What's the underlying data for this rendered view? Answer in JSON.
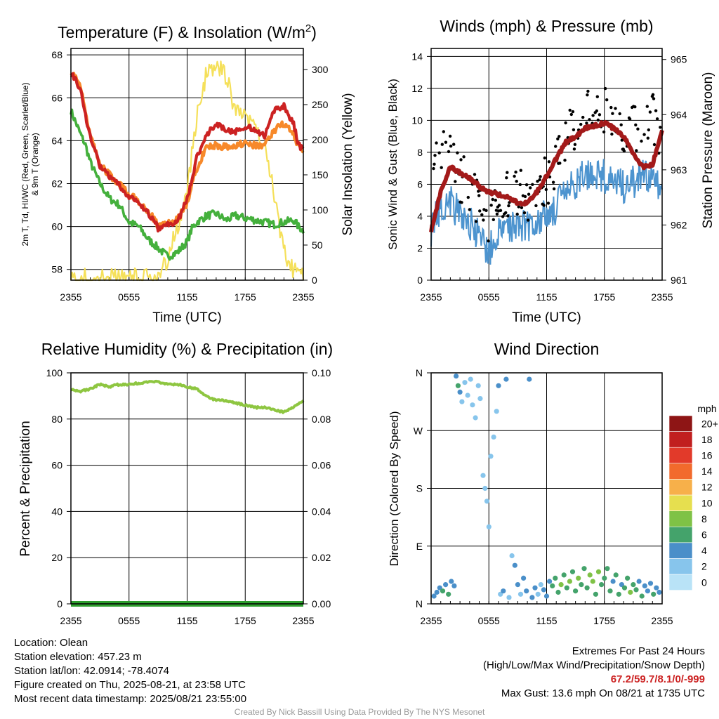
{
  "info": {
    "location": "Location: Olean",
    "elevation": "Station elevation: 457.23 m",
    "latlon": "Station lat/lon: 42.0914; -78.4074",
    "created": "Figure created on Thu, 2025-08-21, at 23:58 UTC",
    "recent": "Most recent data timestamp: 2025/08/21 23:55:00"
  },
  "extremes": {
    "title": "Extremes For Past 24 Hours",
    "subtitle": "(High/Low/Max Wind/Precipitation/Snow Depth)",
    "values": "67.2/59.7/8.1/0/-999",
    "gust": "Max Gust: 13.6 mph On 08/21 at 1735 UTC"
  },
  "credit": "Created By Nick Bassill Using Data Provided By The NYS Mesonet",
  "colors": {
    "red": "#cc2222",
    "orange": "#f7892a",
    "green": "#44b03c",
    "yellow": "#f5e05a",
    "blue": "#4d94cf",
    "maroon": "#a31a1a",
    "rh": "#8ec641",
    "precip": "#2e9e2e"
  },
  "chart_data": [
    {
      "type": "line",
      "title": "Temperature (F) & Insolation (W/m2)",
      "title_main": "Temperature (F) & Insolation (W/m",
      "title_sup": "2",
      "title_end": ")",
      "xlabel": "Time (UTC)",
      "ylabel_lines": [
        "2m T, Td, HI/WC (Red, Green, Scarlet/Blue)",
        "& 9m T (Orange)"
      ],
      "y2label": "Solar Insolation (Yellow)",
      "x_ticks": [
        "2355",
        "0555",
        "1155",
        "1755",
        "2355"
      ],
      "ylim": [
        57.5,
        68.3
      ],
      "y_ticks": [
        58,
        60,
        62,
        64,
        66,
        68
      ],
      "y2lim": [
        0,
        330
      ],
      "y2_ticks": [
        0,
        50,
        100,
        150,
        200,
        250,
        300
      ],
      "x_hours": [
        0,
        1,
        1.5,
        2,
        3,
        4,
        5,
        6,
        7,
        8,
        8.5,
        9,
        10,
        11,
        12,
        12.5,
        13,
        14,
        15,
        16,
        17,
        18,
        19,
        20,
        21,
        22,
        23,
        23.5,
        24
      ],
      "series": [
        {
          "name": "2m T",
          "color": "red",
          "axis": "left",
          "values": [
            67.2,
            66.4,
            65.2,
            64.2,
            62.8,
            62.3,
            61.9,
            61.4,
            61.1,
            60.6,
            60.3,
            59.9,
            60.1,
            60.2,
            61.3,
            62.2,
            63.2,
            64.3,
            64.8,
            64.5,
            64.4,
            64.7,
            64.5,
            64.2,
            65.4,
            65.6,
            64.8,
            63.8,
            63.6
          ]
        },
        {
          "name": "9m T",
          "color": "orange",
          "axis": "left",
          "values": [
            67.3,
            66.6,
            65.4,
            64.3,
            62.9,
            62.4,
            62.0,
            61.5,
            61.2,
            60.7,
            60.4,
            60.0,
            60.2,
            60.3,
            61.1,
            62.0,
            62.7,
            63.7,
            63.8,
            63.7,
            63.8,
            63.9,
            63.8,
            63.8,
            64.5,
            64.8,
            64.3,
            63.7,
            63.6
          ]
        },
        {
          "name": "Td",
          "color": "green",
          "axis": "left",
          "values": [
            65.4,
            64.3,
            63.8,
            63.0,
            62.0,
            61.3,
            61.0,
            60.2,
            60.0,
            59.4,
            59.2,
            59.0,
            58.6,
            58.8,
            59.3,
            59.9,
            60.2,
            60.5,
            60.6,
            60.3,
            60.5,
            60.4,
            60.3,
            60.2,
            60.1,
            60.2,
            60.3,
            60.0,
            59.8
          ]
        },
        {
          "name": "Solar",
          "color": "yellow",
          "axis": "right",
          "values": [
            3,
            3,
            3,
            3,
            3,
            3,
            3,
            3,
            3,
            3,
            3,
            3,
            30,
            75,
            130,
            180,
            230,
            295,
            310,
            290,
            240,
            230,
            215,
            190,
            120,
            40,
            15,
            8,
            3
          ]
        }
      ]
    },
    {
      "type": "line",
      "title": "Winds (mph) & Pressure (mb)",
      "xlabel": "Time (UTC)",
      "ylabel": "Sonic Wind & Gust (Blue, Black)",
      "y2label": "Station Pressure (Maroon)",
      "x_ticks": [
        "2355",
        "0555",
        "1155",
        "1755",
        "2355"
      ],
      "ylim": [
        0,
        14.5
      ],
      "y_ticks": [
        0,
        2,
        4,
        6,
        8,
        10,
        12,
        14
      ],
      "y2lim": [
        961,
        965.2
      ],
      "y2_ticks": [
        961,
        962,
        963,
        964,
        965
      ],
      "x_hours": [
        0,
        1,
        2,
        3,
        4,
        5,
        6,
        7,
        8,
        9,
        10,
        11,
        12,
        13,
        14,
        15,
        16,
        17,
        18,
        19,
        20,
        21,
        22,
        23,
        24
      ],
      "series": [
        {
          "name": "Sonic Wind",
          "color": "blue",
          "axis": "left",
          "values": [
            3.2,
            4.6,
            5.0,
            4.0,
            3.6,
            2.6,
            1.8,
            2.8,
            3.4,
            3.6,
            3.4,
            3.8,
            4.0,
            4.6,
            5.4,
            6.0,
            6.6,
            6.8,
            6.5,
            6.0,
            5.9,
            6.1,
            6.5,
            6.6,
            5.4
          ]
        },
        {
          "name": "Gust",
          "color": "black",
          "axis": "left",
          "values": [
            8.2,
            8.0,
            7.8,
            6.5,
            5.6,
            4.6,
            3.0,
            4.8,
            5.4,
            5.4,
            5.2,
            5.9,
            6.2,
            7.4,
            8.8,
            9.6,
            10.6,
            11.5,
            10.8,
            9.8,
            8.9,
            9.4,
            9.8,
            10.2,
            8.8
          ]
        },
        {
          "name": "Pressure",
          "color": "maroon",
          "axis": "right",
          "values": [
            961.9,
            962.6,
            963.05,
            962.95,
            962.85,
            962.7,
            962.6,
            962.55,
            962.5,
            962.4,
            962.4,
            962.6,
            962.9,
            963.2,
            963.5,
            963.6,
            963.75,
            963.8,
            963.85,
            963.75,
            963.6,
            963.3,
            963.05,
            963.1,
            963.7
          ]
        }
      ]
    },
    {
      "type": "line",
      "title": "Relative Humidity (%) & Precipitation (in)",
      "ylabel": "Percent & Precipitation",
      "x_ticks": [
        "2355",
        "0555",
        "1155",
        "1755",
        "2355"
      ],
      "ylim": [
        0,
        100
      ],
      "y_ticks": [
        0,
        20,
        40,
        60,
        80,
        100
      ],
      "y2lim": [
        0,
        0.1
      ],
      "y2_ticks": [
        "0.00",
        "0.02",
        "0.04",
        "0.06",
        "0.08",
        "0.10"
      ],
      "x_hours": [
        0,
        1,
        2,
        3,
        4,
        5,
        6,
        7,
        8,
        9,
        10,
        11,
        12,
        13,
        14,
        15,
        16,
        17,
        18,
        19,
        20,
        21,
        22,
        23,
        24
      ],
      "series": [
        {
          "name": "RH",
          "color": "rh",
          "axis": "left",
          "values": [
            93,
            92,
            93,
            95,
            94,
            95,
            95,
            95.5,
            96,
            96,
            95,
            95,
            94,
            93,
            90,
            88,
            88,
            87,
            86,
            85,
            85,
            84,
            83,
            85,
            88
          ]
        },
        {
          "name": "Precip",
          "color": "precip",
          "axis": "right",
          "values": [
            0,
            0,
            0,
            0,
            0,
            0,
            0,
            0,
            0,
            0,
            0,
            0,
            0,
            0,
            0,
            0,
            0,
            0,
            0,
            0,
            0,
            0,
            0,
            0,
            0
          ]
        }
      ]
    },
    {
      "type": "scatter",
      "title": "Wind Direction",
      "ylabel": "Direction (Colored By Speed)",
      "x_ticks": [
        "2355",
        "0555",
        "1155",
        "1755",
        "2355"
      ],
      "y_ticks": [
        "N",
        "E",
        "S",
        "W",
        "N"
      ],
      "ylim": [
        0,
        360
      ],
      "legend_title": "mph",
      "legend_labels": [
        "0",
        "2",
        "4",
        "6",
        "8",
        "10",
        "12",
        "14",
        "16",
        "18",
        "20+"
      ],
      "legend_colors": [
        "#b9e3f7",
        "#87c5ec",
        "#4a8fc9",
        "#44a36b",
        "#7fc246",
        "#e6df4f",
        "#f7b04a",
        "#f26a2c",
        "#e23a2a",
        "#c11f1f",
        "#8e1515"
      ],
      "points": [
        {
          "h": 0.3,
          "d": 12,
          "s": 3
        },
        {
          "h": 0.6,
          "d": 18,
          "s": 4
        },
        {
          "h": 0.9,
          "d": 25,
          "s": 3
        },
        {
          "h": 1.2,
          "d": 20,
          "s": 5
        },
        {
          "h": 1.5,
          "d": 30,
          "s": 4
        },
        {
          "h": 1.8,
          "d": 15,
          "s": 6
        },
        {
          "h": 2.1,
          "d": 35,
          "s": 4
        },
        {
          "h": 2.4,
          "d": 28,
          "s": 3
        },
        {
          "h": 2.6,
          "d": 355,
          "s": 4
        },
        {
          "h": 2.8,
          "d": 340,
          "s": 5
        },
        {
          "h": 3.0,
          "d": 330,
          "s": 3
        },
        {
          "h": 3.2,
          "d": 315,
          "s": 2
        },
        {
          "h": 3.5,
          "d": 345,
          "s": 2
        },
        {
          "h": 3.8,
          "d": 325,
          "s": 1
        },
        {
          "h": 4.1,
          "d": 350,
          "s": 1
        },
        {
          "h": 4.3,
          "d": 310,
          "s": 1
        },
        {
          "h": 4.6,
          "d": 290,
          "s": 1
        },
        {
          "h": 4.9,
          "d": 340,
          "s": 2
        },
        {
          "h": 5.1,
          "d": 320,
          "s": 1
        },
        {
          "h": 5.4,
          "d": 200,
          "s": 1
        },
        {
          "h": 5.6,
          "d": 180,
          "s": 1
        },
        {
          "h": 5.8,
          "d": 160,
          "s": 1
        },
        {
          "h": 6.0,
          "d": 120,
          "s": 1
        },
        {
          "h": 6.2,
          "d": 230,
          "s": 1
        },
        {
          "h": 6.5,
          "d": 260,
          "s": 2
        },
        {
          "h": 6.8,
          "d": 300,
          "s": 2
        },
        {
          "h": 7.0,
          "d": 340,
          "s": 3
        },
        {
          "h": 7.2,
          "d": 15,
          "s": 2
        },
        {
          "h": 7.5,
          "d": 20,
          "s": 3
        },
        {
          "h": 7.8,
          "d": 350,
          "s": 3
        },
        {
          "h": 8.1,
          "d": 10,
          "s": 2
        },
        {
          "h": 8.4,
          "d": 75,
          "s": 2
        },
        {
          "h": 8.7,
          "d": 60,
          "s": 3
        },
        {
          "h": 9.0,
          "d": 30,
          "s": 3
        },
        {
          "h": 9.3,
          "d": 15,
          "s": 2
        },
        {
          "h": 9.6,
          "d": 40,
          "s": 3
        },
        {
          "h": 9.9,
          "d": 20,
          "s": 3
        },
        {
          "h": 10.2,
          "d": 350,
          "s": 3
        },
        {
          "h": 10.5,
          "d": 10,
          "s": 4
        },
        {
          "h": 10.8,
          "d": 25,
          "s": 3
        },
        {
          "h": 11.1,
          "d": 15,
          "s": 2
        },
        {
          "h": 11.4,
          "d": 30,
          "s": 2
        },
        {
          "h": 11.7,
          "d": 22,
          "s": 3
        },
        {
          "h": 12.0,
          "d": 12,
          "s": 4
        },
        {
          "h": 12.3,
          "d": 35,
          "s": 4
        },
        {
          "h": 12.6,
          "d": 28,
          "s": 5
        },
        {
          "h": 12.9,
          "d": 40,
          "s": 5
        },
        {
          "h": 13.2,
          "d": 18,
          "s": 6
        },
        {
          "h": 13.5,
          "d": 30,
          "s": 7
        },
        {
          "h": 13.8,
          "d": 45,
          "s": 6
        },
        {
          "h": 14.1,
          "d": 25,
          "s": 5
        },
        {
          "h": 14.4,
          "d": 35,
          "s": 7
        },
        {
          "h": 14.7,
          "d": 50,
          "s": 6
        },
        {
          "h": 15.0,
          "d": 20,
          "s": 5
        },
        {
          "h": 15.3,
          "d": 40,
          "s": 7
        },
        {
          "h": 15.6,
          "d": 30,
          "s": 6
        },
        {
          "h": 15.9,
          "d": 55,
          "s": 5
        },
        {
          "h": 16.2,
          "d": 25,
          "s": 6
        },
        {
          "h": 16.5,
          "d": 45,
          "s": 7
        },
        {
          "h": 16.8,
          "d": 35,
          "s": 8
        },
        {
          "h": 17.1,
          "d": 15,
          "s": 6
        },
        {
          "h": 17.4,
          "d": 50,
          "s": 7
        },
        {
          "h": 17.7,
          "d": 30,
          "s": 6
        },
        {
          "h": 18.0,
          "d": 40,
          "s": 5
        },
        {
          "h": 18.3,
          "d": 55,
          "s": 6
        },
        {
          "h": 18.6,
          "d": 20,
          "s": 5
        },
        {
          "h": 18.9,
          "d": 35,
          "s": 4
        },
        {
          "h": 19.2,
          "d": 45,
          "s": 6
        },
        {
          "h": 19.5,
          "d": 15,
          "s": 5
        },
        {
          "h": 19.8,
          "d": 30,
          "s": 4
        },
        {
          "h": 20.1,
          "d": 25,
          "s": 5
        },
        {
          "h": 20.4,
          "d": 40,
          "s": 6
        },
        {
          "h": 20.7,
          "d": 18,
          "s": 7
        },
        {
          "h": 21.0,
          "d": 30,
          "s": 6
        },
        {
          "h": 21.3,
          "d": 22,
          "s": 5
        },
        {
          "h": 21.6,
          "d": 35,
          "s": 4
        },
        {
          "h": 21.9,
          "d": 12,
          "s": 5
        },
        {
          "h": 22.2,
          "d": 28,
          "s": 4
        },
        {
          "h": 22.5,
          "d": 20,
          "s": 3
        },
        {
          "h": 22.8,
          "d": 32,
          "s": 4
        },
        {
          "h": 23.1,
          "d": 15,
          "s": 5
        },
        {
          "h": 23.4,
          "d": 25,
          "s": 4
        },
        {
          "h": 23.7,
          "d": 18,
          "s": 3
        }
      ]
    }
  ]
}
